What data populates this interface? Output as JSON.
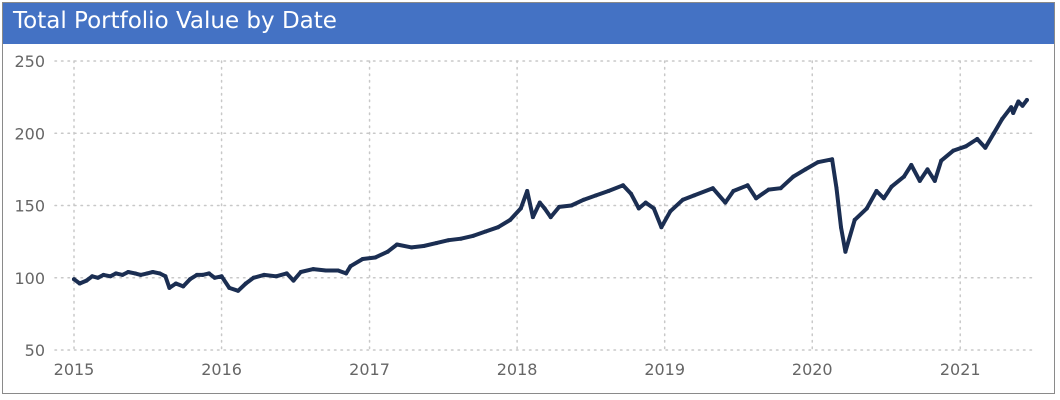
{
  "chart_data": {
    "type": "line",
    "title": "Total Portfolio Value by Date",
    "xlabel": "",
    "ylabel": "",
    "x_axis": {
      "type": "date",
      "range": [
        "2014-11-15",
        "2021-06-30"
      ],
      "ticks": [
        "2015",
        "2016",
        "2017",
        "2018",
        "2019",
        "2020",
        "2021"
      ]
    },
    "y_axis": {
      "range": [
        50,
        250
      ],
      "ticks": [
        50,
        100,
        150,
        200,
        250
      ]
    },
    "grid": {
      "horizontal": "dotted",
      "vertical": "dotted"
    },
    "legend": "none",
    "series": [
      {
        "color": "#1b2e52",
        "points": [
          [
            "2015-01-01",
            99
          ],
          [
            "2015-01-15",
            96
          ],
          [
            "2015-02-01",
            98
          ],
          [
            "2015-02-15",
            101
          ],
          [
            "2015-03-01",
            100
          ],
          [
            "2015-03-15",
            102
          ],
          [
            "2015-04-01",
            101
          ],
          [
            "2015-04-15",
            103
          ],
          [
            "2015-05-01",
            102
          ],
          [
            "2015-05-15",
            104
          ],
          [
            "2015-06-01",
            103
          ],
          [
            "2015-06-15",
            102
          ],
          [
            "2015-07-01",
            103
          ],
          [
            "2015-07-15",
            104
          ],
          [
            "2015-08-01",
            103
          ],
          [
            "2015-08-15",
            101
          ],
          [
            "2015-08-25",
            93
          ],
          [
            "2015-09-10",
            96
          ],
          [
            "2015-09-28",
            94
          ],
          [
            "2015-10-15",
            99
          ],
          [
            "2015-11-01",
            102
          ],
          [
            "2015-11-15",
            102
          ],
          [
            "2015-12-01",
            103
          ],
          [
            "2015-12-15",
            100
          ],
          [
            "2016-01-01",
            101
          ],
          [
            "2016-01-20",
            93
          ],
          [
            "2016-02-11",
            91
          ],
          [
            "2016-03-01",
            96
          ],
          [
            "2016-03-20",
            100
          ],
          [
            "2016-04-15",
            102
          ],
          [
            "2016-05-15",
            101
          ],
          [
            "2016-06-10",
            103
          ],
          [
            "2016-06-27",
            98
          ],
          [
            "2016-07-15",
            104
          ],
          [
            "2016-08-15",
            106
          ],
          [
            "2016-09-15",
            105
          ],
          [
            "2016-10-15",
            105
          ],
          [
            "2016-11-04",
            103
          ],
          [
            "2016-11-15",
            108
          ],
          [
            "2016-12-15",
            113
          ],
          [
            "2017-01-15",
            114
          ],
          [
            "2017-02-15",
            118
          ],
          [
            "2017-03-10",
            123
          ],
          [
            "2017-04-15",
            121
          ],
          [
            "2017-05-15",
            122
          ],
          [
            "2017-06-15",
            124
          ],
          [
            "2017-07-15",
            126
          ],
          [
            "2017-08-15",
            127
          ],
          [
            "2017-09-15",
            129
          ],
          [
            "2017-10-15",
            132
          ],
          [
            "2017-11-15",
            135
          ],
          [
            "2017-12-15",
            140
          ],
          [
            "2018-01-10",
            148
          ],
          [
            "2018-01-26",
            160
          ],
          [
            "2018-02-09",
            142
          ],
          [
            "2018-02-26",
            152
          ],
          [
            "2018-03-10",
            148
          ],
          [
            "2018-03-25",
            142
          ],
          [
            "2018-04-15",
            149
          ],
          [
            "2018-05-15",
            150
          ],
          [
            "2018-06-15",
            154
          ],
          [
            "2018-07-15",
            157
          ],
          [
            "2018-08-15",
            160
          ],
          [
            "2018-09-20",
            164
          ],
          [
            "2018-10-10",
            158
          ],
          [
            "2018-10-29",
            148
          ],
          [
            "2018-11-15",
            152
          ],
          [
            "2018-12-05",
            148
          ],
          [
            "2018-12-24",
            135
          ],
          [
            "2019-01-15",
            146
          ],
          [
            "2019-02-15",
            154
          ],
          [
            "2019-03-15",
            157
          ],
          [
            "2019-04-30",
            162
          ],
          [
            "2019-05-31",
            152
          ],
          [
            "2019-06-20",
            160
          ],
          [
            "2019-07-25",
            164
          ],
          [
            "2019-08-15",
            155
          ],
          [
            "2019-09-15",
            161
          ],
          [
            "2019-10-15",
            162
          ],
          [
            "2019-11-15",
            170
          ],
          [
            "2019-12-15",
            175
          ],
          [
            "2020-01-15",
            180
          ],
          [
            "2020-02-19",
            182
          ],
          [
            "2020-03-01",
            162
          ],
          [
            "2020-03-12",
            135
          ],
          [
            "2020-03-23",
            118
          ],
          [
            "2020-04-15",
            140
          ],
          [
            "2020-05-15",
            148
          ],
          [
            "2020-06-08",
            160
          ],
          [
            "2020-06-26",
            155
          ],
          [
            "2020-07-15",
            163
          ],
          [
            "2020-08-15",
            170
          ],
          [
            "2020-09-02",
            178
          ],
          [
            "2020-09-23",
            167
          ],
          [
            "2020-10-12",
            175
          ],
          [
            "2020-10-30",
            167
          ],
          [
            "2020-11-15",
            181
          ],
          [
            "2020-12-15",
            188
          ],
          [
            "2021-01-15",
            191
          ],
          [
            "2021-02-12",
            196
          ],
          [
            "2021-03-04",
            190
          ],
          [
            "2021-03-25",
            200
          ],
          [
            "2021-04-15",
            210
          ],
          [
            "2021-05-07",
            218
          ],
          [
            "2021-05-12",
            214
          ],
          [
            "2021-05-25",
            222
          ],
          [
            "2021-06-04",
            219
          ],
          [
            "2021-06-15",
            223
          ]
        ]
      }
    ]
  }
}
